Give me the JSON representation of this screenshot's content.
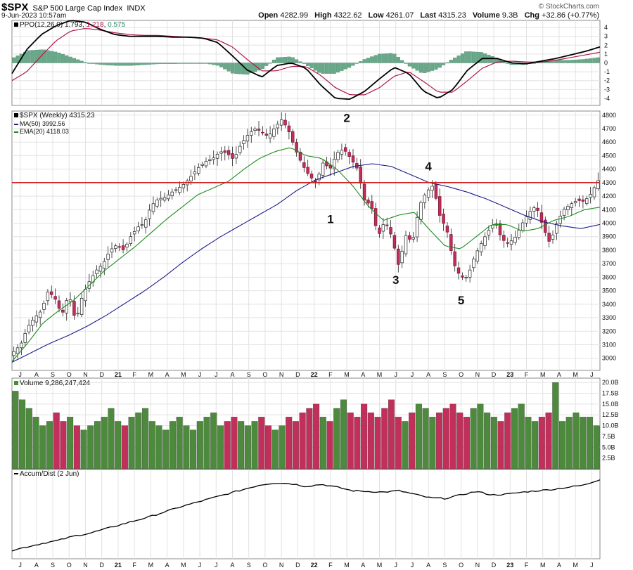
{
  "header": {
    "symbol": "$SPX",
    "name": "S&P 500 Large Cap Index",
    "exchange": "INDX",
    "date": "9-Jun-2023 10:57am",
    "open_label": "Open",
    "open": "4282.99",
    "high_label": "High",
    "high": "4322.62",
    "low_label": "Low",
    "low": "4261.07",
    "last_label": "Last",
    "last": "4315.23",
    "volume_label": "Volume",
    "volume": "9.3B",
    "chg_label": "Chg",
    "chg": "+32.86 (+0.77%)",
    "watermark": "© StockCharts.com"
  },
  "colors": {
    "up": "#4e8a3e",
    "down": "#c0305a",
    "ppo_line": "#000000",
    "ppo_signal": "#b01848",
    "ppo_hist": "#6aa88a",
    "ma50": "#1c1c8a",
    "ema20": "#1e8a1e",
    "resistance": "#d02020",
    "support": "#1e8a1e",
    "grid": "#e2e2e2"
  },
  "chart_data": [
    {
      "type": "line",
      "panel": "ppo",
      "title": "PPO(12,26,9)",
      "legend": [
        {
          "name": "PPO(12,26,9)",
          "value": "1.793",
          "color": "#000000"
        },
        {
          "name": "",
          "value": "1.218",
          "color": "#b01848"
        },
        {
          "name": "",
          "value": "0.575",
          "color": "#6aa88a"
        }
      ],
      "yticks": [
        -4,
        -3,
        -2,
        -1,
        0,
        1,
        2,
        3,
        4
      ],
      "ylim": [
        -4.8,
        4.8
      ],
      "ppo": [
        -1.2,
        1.5,
        3.2,
        4.2,
        4.8,
        4.6,
        3.8,
        3.2,
        3.0,
        3.0,
        3.0,
        2.9,
        2.9,
        2.8,
        2.3,
        0.8,
        -0.8,
        -1.6,
        -0.3,
        0,
        -0.6,
        -2.5,
        -4.0,
        -4.1,
        -3.2,
        -1.8,
        -0.5,
        -1.2,
        -3.2,
        -4.0,
        -3.0,
        -0.8,
        0.5,
        0.5,
        0.0,
        -0.1,
        0.2,
        0.5,
        0.9,
        1.3,
        1.8
      ],
      "signal": [
        -2.0,
        -1.0,
        0.8,
        2.5,
        3.6,
        3.9,
        3.7,
        3.4,
        3.2,
        3.1,
        3.1,
        3.0,
        2.9,
        2.8,
        2.6,
        1.8,
        0.4,
        -0.9,
        -0.9,
        -0.4,
        -0.4,
        -1.4,
        -2.8,
        -3.6,
        -3.6,
        -2.8,
        -1.5,
        -1.0,
        -2.1,
        -3.3,
        -3.3,
        -2.0,
        -0.6,
        0.1,
        0.2,
        0.1,
        0.1,
        0.3,
        0.6,
        0.9,
        1.2
      ],
      "hist": [
        0.6,
        1.4,
        1.5,
        1.2,
        0.6,
        0.0,
        -0.2,
        -0.3,
        -0.3,
        -0.2,
        -0.1,
        -0.1,
        0.0,
        0.0,
        -0.3,
        -1.2,
        -1.3,
        -0.7,
        0.6,
        0.7,
        -0.2,
        -1.2,
        -1.2,
        -0.5,
        0.4,
        1.0,
        1.1,
        -0.3,
        -1.2,
        -0.7,
        0.4,
        1.3,
        1.2,
        0.6,
        -0.2,
        -0.2,
        0.1,
        0.3,
        0.3,
        0.4,
        0.6
      ]
    },
    {
      "type": "candlestick",
      "panel": "price",
      "title": "$SPX (Weekly) 4315.23",
      "legend": [
        {
          "name": "$SPX (Weekly)",
          "value": "4315.23",
          "color": "#000000"
        },
        {
          "name": "MA(50)",
          "value": "3992.56",
          "color": "#1c1c8a"
        },
        {
          "name": "EMA(20)",
          "value": "4118.03",
          "color": "#1e8a1e"
        }
      ],
      "yticks": [
        3000,
        3100,
        3200,
        3300,
        3400,
        3500,
        3600,
        3700,
        3800,
        3900,
        4000,
        4100,
        4200,
        4300,
        4400,
        4500,
        4600,
        4700,
        4800
      ],
      "ylim": [
        2910,
        4830
      ],
      "close_path": [
        3050,
        3100,
        3230,
        3300,
        3350,
        3500,
        3440,
        3320,
        3480,
        3270,
        3470,
        3570,
        3650,
        3700,
        3800,
        3840,
        3800,
        3900,
        3970,
        4000,
        4130,
        4180,
        4190,
        4230,
        4260,
        4300,
        4360,
        4420,
        4460,
        4480,
        4530,
        4520,
        4470,
        4580,
        4650,
        4700,
        4680,
        4640,
        4710,
        4770,
        4680,
        4540,
        4430,
        4350,
        4300,
        4450,
        4400,
        4520,
        4550,
        4480,
        4400,
        4170,
        4130,
        3900,
        4020,
        3900,
        3680,
        3910,
        3860,
        4130,
        4230,
        4280,
        4050,
        3950,
        3700,
        3600,
        3600,
        3750,
        3850,
        3940,
        4010,
        3880,
        3850,
        3900,
        4000,
        4080,
        4130,
        3970,
        3850,
        4000,
        4100,
        4140,
        4170,
        4160,
        4220,
        4315
      ],
      "ma50_path": [
        2970,
        3040,
        3110,
        3170,
        3240,
        3320,
        3410,
        3500,
        3600,
        3710,
        3810,
        3900,
        3980,
        4060,
        4140,
        4240,
        4320,
        4370,
        4420,
        4440,
        4420,
        4360,
        4300,
        4270,
        4230,
        4180,
        4120,
        4060,
        4010,
        3980,
        3960,
        3990
      ],
      "ema20_path": [
        2975,
        3110,
        3260,
        3350,
        3430,
        3540,
        3650,
        3740,
        3830,
        3930,
        4030,
        4120,
        4210,
        4260,
        4310,
        4400,
        4480,
        4530,
        4560,
        4500,
        4480,
        4400,
        4280,
        4130,
        4020,
        4060,
        4080,
        3950,
        3830,
        3810,
        3900,
        3990,
        3990,
        3940,
        3960,
        4020,
        4050,
        4100,
        4118
      ],
      "resistance_level": 4300,
      "support_level": 4300,
      "annotations": [
        {
          "text": "1",
          "x": "2022-02",
          "y": 4000
        },
        {
          "text": "2",
          "x": "2022-03",
          "y": 4750
        },
        {
          "text": "3",
          "x": "2022-06",
          "y": 3550
        },
        {
          "text": "4",
          "x": "2022-08",
          "y": 4390
        },
        {
          "text": "5",
          "x": "2022-10",
          "y": 3400
        }
      ]
    },
    {
      "type": "bar",
      "panel": "volume",
      "title": "Volume 9,286,247,424",
      "legend": [
        {
          "name": "Volume",
          "value": "9,286,247,424"
        }
      ],
      "ytick_labels": [
        "2.5B",
        "5.0B",
        "7.5B",
        "10.0B",
        "12.5B",
        "15.0B",
        "17.5B",
        "20.0B"
      ],
      "yticks": [
        2.5,
        5.0,
        7.5,
        10.0,
        12.5,
        15.0,
        17.5,
        20.0
      ],
      "ylim": [
        0,
        21
      ],
      "values": [
        18,
        16,
        14,
        12,
        10,
        11,
        13,
        11,
        12,
        10,
        9,
        10,
        11,
        12,
        14,
        11,
        10,
        12,
        13,
        14,
        11,
        10,
        9,
        11,
        12,
        10,
        9,
        11,
        12,
        13,
        10,
        11,
        12,
        11,
        10,
        11,
        12,
        10,
        9,
        10,
        12,
        11,
        13,
        14,
        15,
        12,
        11,
        14,
        16,
        13,
        12,
        15,
        13,
        12,
        14,
        16,
        12,
        11,
        13,
        15,
        14,
        12,
        13,
        14,
        15,
        13,
        12,
        14,
        15,
        13,
        12,
        11,
        13,
        14,
        15,
        12,
        11,
        12,
        13,
        20,
        11,
        12,
        13,
        12,
        12,
        10
      ]
    },
    {
      "type": "line",
      "panel": "accum_dist",
      "title": "Accum/Dist (2 Jun)",
      "legend": [
        {
          "name": "Accum/Dist",
          "value": "2 Jun"
        }
      ],
      "values_normalized": [
        0.0,
        0.05,
        0.1,
        0.14,
        0.2,
        0.24,
        0.3,
        0.36,
        0.42,
        0.48,
        0.55,
        0.62,
        0.68,
        0.74,
        0.8,
        0.86,
        0.92,
        0.95,
        0.94,
        0.9,
        0.93,
        0.89,
        0.84,
        0.83,
        0.82,
        0.84,
        0.79,
        0.74,
        0.73,
        0.78,
        0.83,
        0.78,
        0.79,
        0.82,
        0.84,
        0.86,
        0.89,
        0.92,
        1.0
      ]
    }
  ],
  "x_axis": {
    "labels": [
      "J",
      "A",
      "S",
      "O",
      "N",
      "D",
      "21",
      "F",
      "M",
      "A",
      "M",
      "J",
      "J",
      "A",
      "S",
      "O",
      "N",
      "D",
      "22",
      "F",
      "M",
      "A",
      "M",
      "J",
      "J",
      "A",
      "S",
      "O",
      "N",
      "D",
      "23",
      "F",
      "M",
      "A",
      "M",
      "J"
    ],
    "bold": [
      "21",
      "22",
      "23"
    ]
  }
}
